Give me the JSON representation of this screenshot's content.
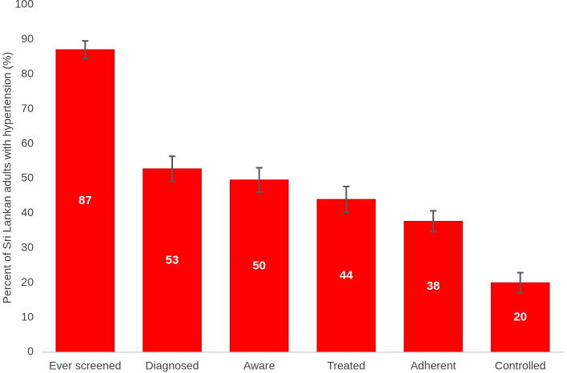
{
  "chart_data": {
    "type": "bar",
    "y_label": "Percent of Sri Lankan adults with hypertension (%)",
    "categories": [
      "Ever screened",
      "Diagnosed",
      "Aware",
      "Treated",
      "Adherent",
      "Controlled"
    ],
    "values": [
      87.1,
      52.8,
      49.6,
      44.0,
      37.7,
      20.0
    ],
    "value_labels": [
      "87",
      "53",
      "50",
      "44",
      "38",
      "20"
    ],
    "errors": [
      2.5,
      3.6,
      3.5,
      3.7,
      3.0,
      2.9
    ],
    "color": "#ff0000",
    "error_color": "#595959",
    "ylim": [
      0,
      100
    ],
    "yticks": [
      0,
      10,
      20,
      30,
      40,
      50,
      60,
      70,
      80,
      90,
      100
    ],
    "grid": false
  }
}
